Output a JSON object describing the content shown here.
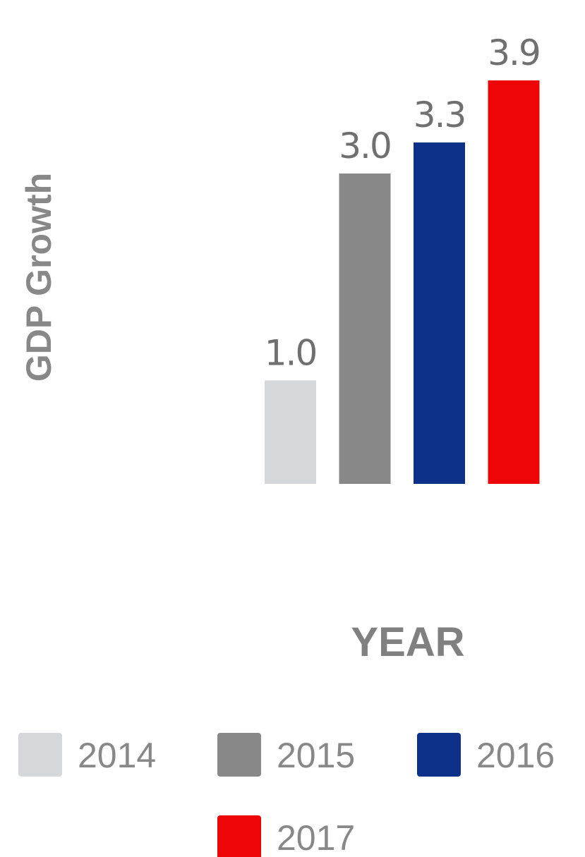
{
  "chart_data": {
    "type": "bar",
    "categories": [
      "2014",
      "2015",
      "2016",
      "2017"
    ],
    "values": [
      1.0,
      3.0,
      3.3,
      3.9
    ],
    "data_labels": [
      "1.0",
      "3.0",
      "3.3",
      "3.9"
    ],
    "colors": [
      "#d6d7db",
      "#888888",
      "#0d3088",
      "#ee0606"
    ],
    "title": "",
    "xlabel": "YEAR",
    "ylabel": "GDP Growth",
    "ylim": [
      0,
      3.9
    ],
    "grid": false,
    "legend": {
      "placement": "bottom",
      "entries": [
        "2014",
        "2015",
        "2016",
        "2017"
      ]
    }
  }
}
